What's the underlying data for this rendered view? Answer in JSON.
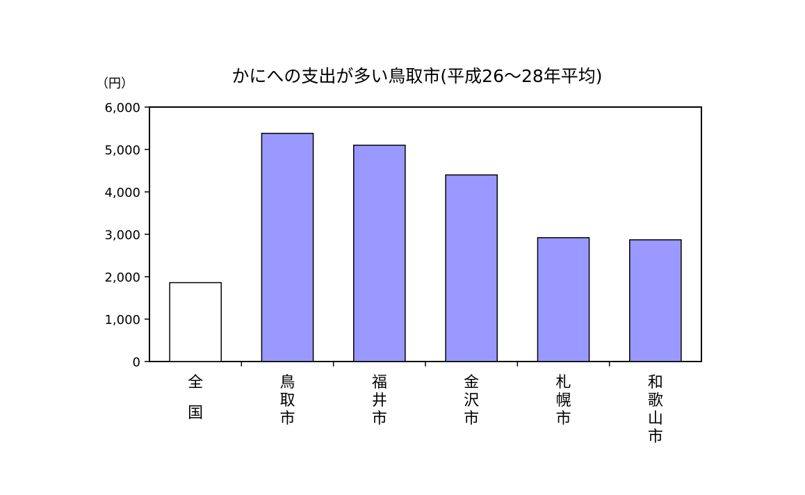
{
  "chart_data": {
    "type": "bar",
    "title": "かにへの支出が多い鳥取市(平成26～28年平均)",
    "unit_label": "（円）",
    "xlabel": "",
    "ylabel": "",
    "ylim": [
      0,
      6000
    ],
    "yticks": [
      0,
      1000,
      2000,
      3000,
      4000,
      5000,
      6000
    ],
    "ytick_labels": [
      "0",
      "1,000",
      "2,000",
      "3,000",
      "4,000",
      "5,000",
      "6,000"
    ],
    "categories": [
      "全国",
      "鳥取市",
      "福井市",
      "金沢市",
      "札幌市",
      "和歌山市"
    ],
    "values": [
      1860,
      5380,
      5100,
      4400,
      2920,
      2870
    ],
    "grid": false,
    "legend": "none",
    "colors": {
      "highlight": "#ffffff",
      "default": "#9999ff",
      "border": "#000000"
    }
  }
}
